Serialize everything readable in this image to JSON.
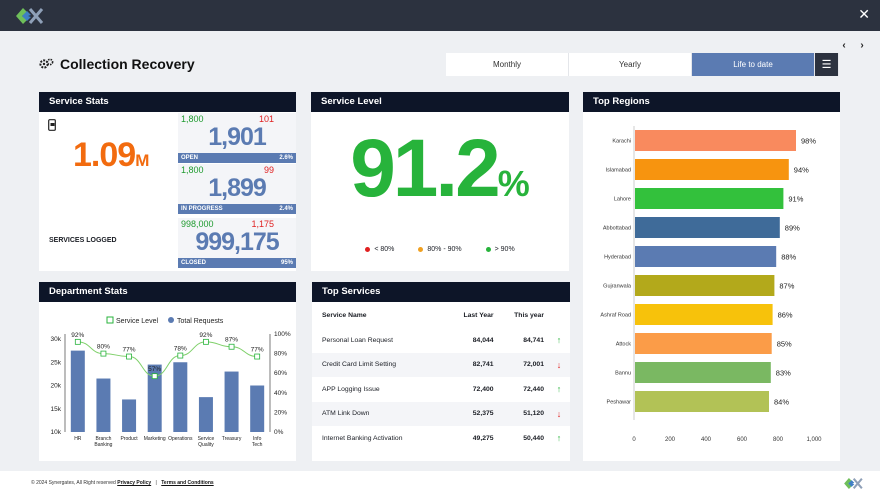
{
  "header": {
    "close_icon": "close-icon",
    "logo_icon": "synergates-logo-icon"
  },
  "title": {
    "text": "Collection Recovery",
    "icon": "gears-icon"
  },
  "nav": {
    "prev": "‹",
    "next": "›"
  },
  "tabs": [
    {
      "label": "Monthly",
      "active": false
    },
    {
      "label": "Yearly",
      "active": false
    },
    {
      "label": "Life to date",
      "active": true
    }
  ],
  "menu_icon": "hamburger-menu-icon",
  "service_stats": {
    "title": "Service Stats",
    "big_value": "1.09",
    "big_unit": "M",
    "label": "SERVICES LOGGED",
    "icon": "mobile-icon",
    "blocks": [
      {
        "left": "1,800",
        "right": "101",
        "value": "1,901",
        "status": "OPEN",
        "pct": "2.6%"
      },
      {
        "left": "1,800",
        "right": "99",
        "value": "1,899",
        "status": "IN PROGRESS",
        "pct": "2.4%"
      },
      {
        "left": "998,000",
        "right": "1,175",
        "value": "999,175",
        "status": "CLOSED",
        "pct": "95%"
      }
    ]
  },
  "service_level": {
    "title": "Service Level",
    "value": "91.2",
    "unit": "%",
    "legend": [
      {
        "label": "< 80%",
        "color": "#e02020"
      },
      {
        "label": "80% - 90%",
        "color": "#f0a020"
      },
      {
        "label": "> 90%",
        "color": "#27b33b"
      }
    ]
  },
  "top_regions": {
    "title": "Top Regions",
    "chart_data": {
      "type": "bar",
      "orientation": "horizontal",
      "categories": [
        "Karachi",
        "Islamabad",
        "Lahore",
        "Abbottabad",
        "Hyderabad",
        "Gujranwala",
        "Ashraf Road",
        "Attock",
        "Bannu",
        "Peshawar"
      ],
      "values": [
        900,
        860,
        830,
        810,
        790,
        780,
        770,
        765,
        760,
        750
      ],
      "data_labels": [
        "98%",
        "94%",
        "91%",
        "89%",
        "88%",
        "87%",
        "86%",
        "85%",
        "83%",
        "84%"
      ],
      "colors": [
        "#f98a5e",
        "#f7940f",
        "#33c13c",
        "#3f6b99",
        "#5b7bb2",
        "#b3a91b",
        "#f7c20b",
        "#fb9c48",
        "#7ab862",
        "#b2c256"
      ],
      "xticks": [
        "0",
        "200",
        "400",
        "600",
        "800",
        "1,000"
      ],
      "xlim": [
        0,
        1000
      ],
      "grid": false
    }
  },
  "department_stats": {
    "title": "Department Stats",
    "chart_data": {
      "type": "bar",
      "categories": [
        "HR",
        "Branch Banking",
        "Product",
        "Marketing",
        "Operations",
        "Service Quality",
        "Treasury",
        "Info Tech"
      ],
      "series": [
        {
          "name": "Total Requests",
          "type": "bar",
          "color": "#5b7bb2",
          "values": [
            27500,
            21500,
            17000,
            24500,
            25000,
            17500,
            23000,
            20000
          ]
        },
        {
          "name": "Service Level",
          "type": "line",
          "color": "#27b33b",
          "values": [
            92,
            80,
            77,
            57,
            78,
            92,
            87,
            77
          ],
          "labels": [
            "92%",
            "80%",
            "77%",
            "57%",
            "78%",
            "92%",
            "87%",
            "77%"
          ]
        }
      ],
      "yticks_left": [
        "10k",
        "15k",
        "20k",
        "25k",
        "30k"
      ],
      "ylim_left": [
        10000,
        30000
      ],
      "yticks_right": [
        "0%",
        "20%",
        "40%",
        "60%",
        "80%",
        "100%"
      ],
      "ylim_right": [
        0,
        100
      ],
      "legend_position": "top"
    }
  },
  "top_services": {
    "title": "Top Services",
    "columns": [
      "Service Name",
      "Last Year",
      "This year"
    ],
    "rows": [
      {
        "name": "Personal Loan Request",
        "last": "84,044",
        "this": "84,741",
        "trend": "up"
      },
      {
        "name": "Credit Card Limit Setting",
        "last": "82,741",
        "this": "72,001",
        "trend": "down"
      },
      {
        "name": "APP Logging Issue",
        "last": "72,400",
        "this": "72,440",
        "trend": "up"
      },
      {
        "name": "ATM Link Down",
        "last": "52,375",
        "this": "51,120",
        "trend": "down"
      },
      {
        "name": "Internet Banking Activation",
        "last": "49,275",
        "this": "50,440",
        "trend": "up"
      }
    ]
  },
  "footer": {
    "copyright": "© 2024 Synergates, All Right reserved",
    "privacy": "Privacy Policy",
    "terms": "Terms and Conditions"
  }
}
